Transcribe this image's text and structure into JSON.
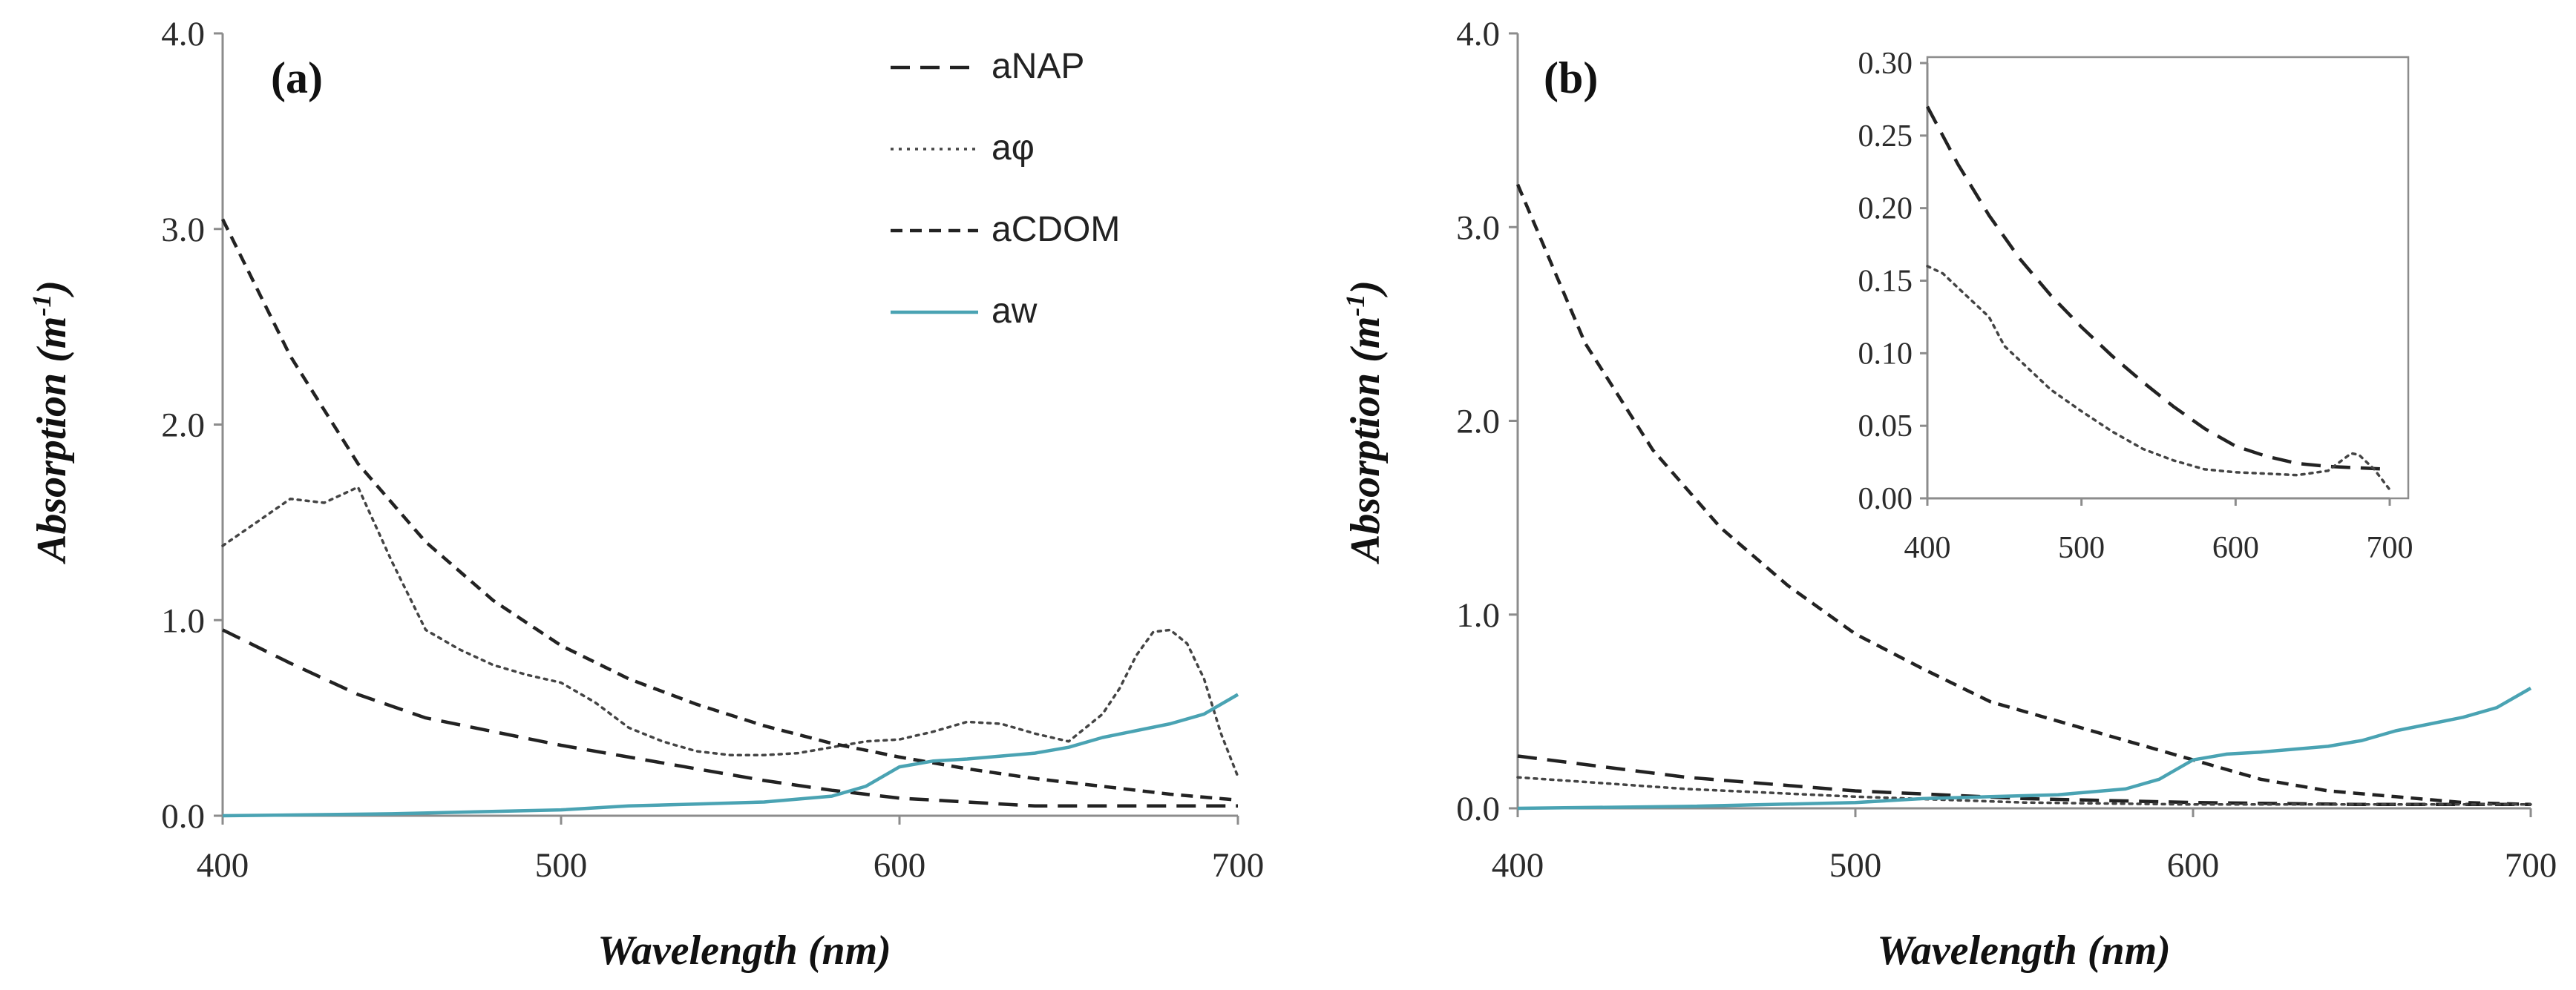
{
  "chart_data": [
    {
      "type": "line",
      "panel_label": "(a)",
      "xlabel": "Wavelength (nm)",
      "ylabel_main": "Absorption (m",
      "ylabel_sup": "-1",
      "ylabel_close": ")",
      "xlim": [
        400,
        700
      ],
      "ylim": [
        0,
        4
      ],
      "x_ticks": [
        400,
        500,
        600,
        700
      ],
      "x_tick_labels": [
        "400",
        "500",
        "600",
        "700"
      ],
      "y_ticks": [
        0,
        1,
        2,
        3,
        4
      ],
      "y_tick_labels": [
        "0.0",
        "1.0",
        "2.0",
        "3.0",
        "4.0"
      ],
      "legend": [
        {
          "label": "aNAP",
          "style": "dash",
          "color": "#222222"
        },
        {
          "label": "aφ",
          "style": "dot",
          "color": "#444444"
        },
        {
          "label": "aCDOM",
          "style": "shortdash",
          "color": "#222222"
        },
        {
          "label": "aw",
          "style": "solid",
          "color": "#4aa3b3"
        }
      ],
      "series": [
        {
          "name": "aNAP",
          "style": "dash",
          "color": "#222222",
          "x": [
            400,
            420,
            440,
            460,
            480,
            500,
            520,
            540,
            560,
            580,
            600,
            620,
            640,
            660,
            680,
            700
          ],
          "y": [
            0.95,
            0.78,
            0.62,
            0.5,
            0.43,
            0.36,
            0.3,
            0.24,
            0.18,
            0.13,
            0.09,
            0.07,
            0.05,
            0.05,
            0.05,
            0.05
          ]
        },
        {
          "name": "aφ",
          "style": "dot",
          "color": "#444444",
          "x": [
            400,
            410,
            420,
            430,
            440,
            450,
            460,
            470,
            480,
            490,
            500,
            510,
            520,
            530,
            540,
            550,
            560,
            570,
            580,
            590,
            600,
            610,
            620,
            630,
            640,
            650,
            660,
            665,
            670,
            675,
            680,
            685,
            690,
            695,
            700
          ],
          "y": [
            1.38,
            1.5,
            1.62,
            1.6,
            1.68,
            1.3,
            0.95,
            0.85,
            0.77,
            0.72,
            0.68,
            0.58,
            0.45,
            0.38,
            0.33,
            0.31,
            0.31,
            0.32,
            0.35,
            0.38,
            0.39,
            0.43,
            0.48,
            0.47,
            0.42,
            0.38,
            0.52,
            0.65,
            0.82,
            0.94,
            0.95,
            0.88,
            0.7,
            0.42,
            0.2
          ]
        },
        {
          "name": "aCDOM",
          "style": "shortdash",
          "color": "#222222",
          "x": [
            400,
            420,
            440,
            460,
            480,
            500,
            520,
            540,
            560,
            580,
            600,
            620,
            640,
            660,
            680,
            700
          ],
          "y": [
            3.05,
            2.35,
            1.8,
            1.4,
            1.1,
            0.87,
            0.7,
            0.57,
            0.46,
            0.37,
            0.3,
            0.24,
            0.19,
            0.15,
            0.11,
            0.08
          ]
        },
        {
          "name": "aw",
          "style": "solid",
          "color": "#4aa3b3",
          "x": [
            400,
            450,
            500,
            520,
            540,
            560,
            580,
            590,
            600,
            610,
            620,
            640,
            650,
            660,
            680,
            690,
            700
          ],
          "y": [
            0.0,
            0.01,
            0.03,
            0.05,
            0.06,
            0.07,
            0.1,
            0.15,
            0.25,
            0.28,
            0.29,
            0.32,
            0.35,
            0.4,
            0.47,
            0.52,
            0.62
          ]
        }
      ]
    },
    {
      "type": "line",
      "panel_label": "(b)",
      "xlabel": "Wavelength (nm)",
      "ylabel_main": "Absorption (m",
      "ylabel_sup": "-1",
      "ylabel_close": ")",
      "xlim": [
        400,
        700
      ],
      "ylim": [
        0,
        4
      ],
      "x_ticks": [
        400,
        500,
        600,
        700
      ],
      "x_tick_labels": [
        "400",
        "500",
        "600",
        "700"
      ],
      "y_ticks": [
        0,
        1,
        2,
        3,
        4
      ],
      "y_tick_labels": [
        "0.0",
        "1.0",
        "2.0",
        "3.0",
        "4.0"
      ],
      "series": [
        {
          "name": "aCDOM",
          "style": "shortdash",
          "color": "#222222",
          "x": [
            400,
            420,
            440,
            460,
            480,
            500,
            520,
            540,
            560,
            580,
            600,
            620,
            640,
            660,
            680,
            700
          ],
          "y": [
            3.22,
            2.4,
            1.85,
            1.45,
            1.15,
            0.9,
            0.72,
            0.55,
            0.45,
            0.35,
            0.25,
            0.15,
            0.09,
            0.06,
            0.03,
            0.02
          ]
        },
        {
          "name": "aNAP",
          "style": "dash",
          "color": "#222222",
          "x": [
            400,
            450,
            500,
            550,
            600,
            650,
            700
          ],
          "y": [
            0.27,
            0.16,
            0.09,
            0.05,
            0.03,
            0.02,
            0.02
          ]
        },
        {
          "name": "aφ",
          "style": "dot",
          "color": "#444444",
          "x": [
            400,
            450,
            500,
            550,
            600,
            650,
            700
          ],
          "y": [
            0.16,
            0.1,
            0.06,
            0.03,
            0.02,
            0.02,
            0.02
          ]
        },
        {
          "name": "aw",
          "style": "solid",
          "color": "#4aa3b3",
          "x": [
            400,
            450,
            500,
            520,
            540,
            560,
            580,
            590,
            600,
            610,
            620,
            640,
            650,
            660,
            680,
            690,
            700
          ],
          "y": [
            0.0,
            0.01,
            0.03,
            0.05,
            0.06,
            0.07,
            0.1,
            0.15,
            0.25,
            0.28,
            0.29,
            0.32,
            0.35,
            0.4,
            0.47,
            0.52,
            0.62
          ]
        }
      ]
    },
    {
      "type": "line",
      "inset": true,
      "xlim": [
        400,
        700
      ],
      "ylim": [
        0,
        0.3
      ],
      "x_ticks": [
        400,
        500,
        600,
        700
      ],
      "x_tick_labels": [
        "400",
        "500",
        "600",
        "700"
      ],
      "y_ticks": [
        0,
        0.05,
        0.1,
        0.15,
        0.2,
        0.25,
        0.3
      ],
      "y_tick_labels": [
        "0.00",
        "0.05",
        "0.10",
        "0.15",
        "0.20",
        "0.25",
        "0.30"
      ],
      "series": [
        {
          "name": "aNAP",
          "style": "dash",
          "color": "#222222",
          "x": [
            400,
            420,
            440,
            460,
            480,
            500,
            520,
            540,
            560,
            580,
            600,
            620,
            640,
            660,
            680,
            700
          ],
          "y": [
            0.27,
            0.23,
            0.195,
            0.165,
            0.14,
            0.118,
            0.098,
            0.08,
            0.063,
            0.048,
            0.036,
            0.029,
            0.024,
            0.022,
            0.021,
            0.02
          ]
        },
        {
          "name": "aφ",
          "style": "dot",
          "color": "#444444",
          "x": [
            400,
            410,
            420,
            430,
            440,
            450,
            460,
            480,
            500,
            520,
            540,
            560,
            580,
            600,
            620,
            640,
            660,
            670,
            675,
            680,
            690,
            700
          ],
          "y": [
            0.16,
            0.155,
            0.145,
            0.135,
            0.125,
            0.105,
            0.095,
            0.075,
            0.06,
            0.046,
            0.034,
            0.026,
            0.02,
            0.018,
            0.017,
            0.016,
            0.019,
            0.027,
            0.031,
            0.03,
            0.02,
            0.006
          ]
        }
      ]
    }
  ]
}
